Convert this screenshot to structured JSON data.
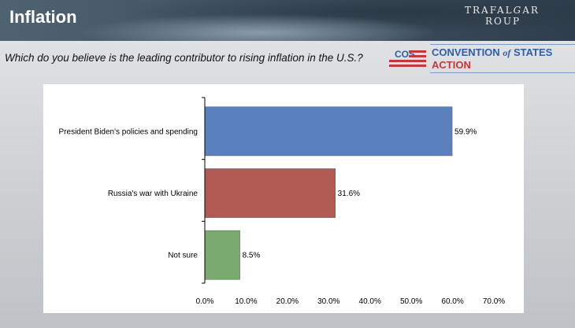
{
  "header": {
    "title": "Inflation",
    "logo_text": "The TRAFALGAR GROUP"
  },
  "question": "Which do you believe is the leading contributor to rising inflation in the U.S.?",
  "sponsor": {
    "abbr": "COS",
    "name_a": "CONVENTION",
    "name_of": "of",
    "name_b": "STATES",
    "name_c": "ACTION"
  },
  "chart_data": {
    "type": "bar",
    "orientation": "horizontal",
    "categories": [
      "President Biden's policies and spending",
      "Russia's war with Ukraine",
      "Not sure"
    ],
    "values": [
      59.9,
      31.6,
      8.5
    ],
    "data_labels": [
      "59.9%",
      "31.6%",
      "8.5%"
    ],
    "colors": [
      "#5a81bd",
      "#b15a54",
      "#7aa96f"
    ],
    "xlim": [
      0,
      70
    ],
    "ticks": [
      "0.0%",
      "10.0%",
      "20.0%",
      "30.0%",
      "40.0%",
      "50.0%",
      "60.0%",
      "70.0%"
    ],
    "grid": false,
    "legend": "none"
  }
}
